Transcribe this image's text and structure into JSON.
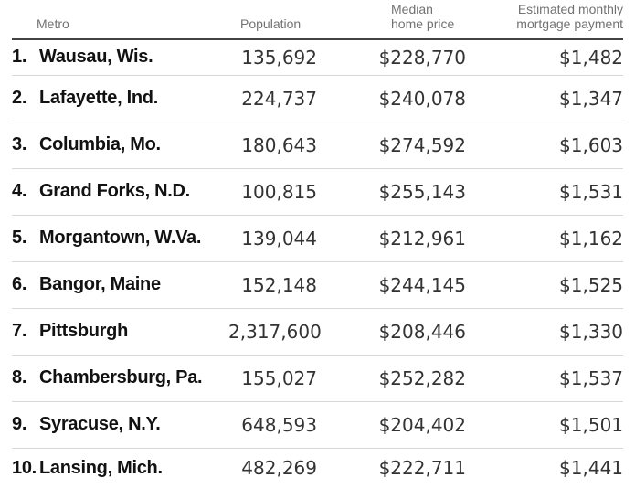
{
  "colors": {
    "text_dark": "#121212",
    "text_numbers": "#333333",
    "text_headers": "#727272",
    "header_rule": "#424242",
    "row_separator": "#d8d8d8",
    "background": "#ffffff"
  },
  "table": {
    "headers": {
      "metro": "Metro",
      "population": "Population",
      "price_line1": "Median",
      "price_line2": "home price",
      "payment_line1": "Estimated monthly",
      "payment_line2": "mortgage payment"
    },
    "rows": [
      {
        "rank": "1.",
        "metro": "Wausau, Wis.",
        "population": "135,692",
        "price": "$228,770",
        "payment": "$1,482"
      },
      {
        "rank": "2.",
        "metro": "Lafayette, Ind.",
        "population": "224,737",
        "price": "$240,078",
        "payment": "$1,347"
      },
      {
        "rank": "3.",
        "metro": "Columbia, Mo.",
        "population": "180,643",
        "price": "$274,592",
        "payment": "$1,603"
      },
      {
        "rank": "4.",
        "metro": "Grand Forks, N.D.",
        "population": "100,815",
        "price": "$255,143",
        "payment": "$1,531"
      },
      {
        "rank": "5.",
        "metro": "Morgantown, W.Va.",
        "population": "139,044",
        "price": "$212,961",
        "payment": "$1,162"
      },
      {
        "rank": "6.",
        "metro": "Bangor, Maine",
        "population": "152,148",
        "price": "$244,145",
        "payment": "$1,525"
      },
      {
        "rank": "7.",
        "metro": "Pittsburgh",
        "population": "2,317,600",
        "price": "$208,446",
        "payment": "$1,330"
      },
      {
        "rank": "8.",
        "metro": "Chambersburg, Pa.",
        "population": "155,027",
        "price": "$252,282",
        "payment": "$1,537"
      },
      {
        "rank": "9.",
        "metro": "Syracuse, N.Y.",
        "population": "648,593",
        "price": "$204,402",
        "payment": "$1,501"
      },
      {
        "rank": "10.",
        "metro": "Lansing, Mich.",
        "population": "482,269",
        "price": "$222,711",
        "payment": "$1,441"
      }
    ]
  },
  "chart_data": {
    "type": "table",
    "title": "",
    "columns": [
      "Metro",
      "Population",
      "Median home price",
      "Estimated monthly mortgage payment"
    ],
    "rows": [
      [
        "Wausau, Wis.",
        135692,
        228770,
        1482
      ],
      [
        "Lafayette, Ind.",
        224737,
        240078,
        1347
      ],
      [
        "Columbia, Mo.",
        180643,
        274592,
        1603
      ],
      [
        "Grand Forks, N.D.",
        100815,
        255143,
        1531
      ],
      [
        "Morgantown, W.Va.",
        139044,
        212961,
        1162
      ],
      [
        "Bangor, Maine",
        152148,
        244145,
        1525
      ],
      [
        "Pittsburgh",
        2317600,
        208446,
        1330
      ],
      [
        "Chambersburg, Pa.",
        155027,
        252282,
        1537
      ],
      [
        "Syracuse, N.Y.",
        648593,
        204402,
        1501
      ],
      [
        "Lansing, Mich.",
        482269,
        222711,
        1441
      ]
    ]
  }
}
